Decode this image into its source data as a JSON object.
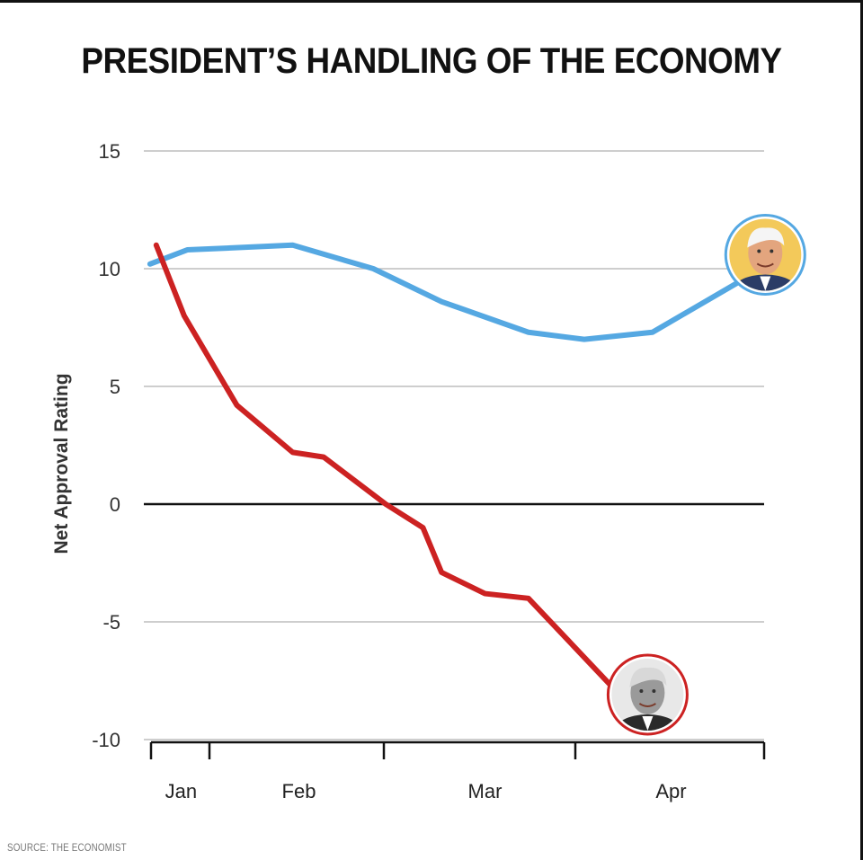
{
  "chart_data": {
    "type": "line",
    "title": "PRESIDENT’S HANDLING OF THE ECONOMY",
    "ylabel": "Net Approval Rating",
    "xlabel": "",
    "ylim": [
      -10,
      15
    ],
    "yticks": [
      "15",
      "10",
      "5",
      "0",
      "-5",
      "-10"
    ],
    "ytick_values": [
      15,
      10,
      5,
      0,
      -5,
      -10
    ],
    "xticks": [
      "Jan",
      "Feb",
      "Mar",
      "Apr"
    ],
    "xtick_values": [
      0.6,
      2.5,
      5.5,
      8.5
    ],
    "xlim": [
      0,
      10
    ],
    "grid": true,
    "source": "SOURCE: THE ECONOMIST",
    "series": [
      {
        "color": "#55a8e2",
        "marker_icon": "face-portrait-icon",
        "x": [
          0.1,
          0.7,
          2.4,
          3.7,
          4.8,
          6.2,
          7.1,
          8.2,
          9.7
        ],
        "values": [
          10.2,
          10.8,
          11.0,
          10.0,
          8.6,
          7.3,
          7.0,
          7.3,
          9.6
        ]
      },
      {
        "color": "#cc2222",
        "marker_icon": "face-portrait-icon",
        "x": [
          0.2,
          0.65,
          1.5,
          2.4,
          2.9,
          3.9,
          4.5,
          4.8,
          5.5,
          6.2,
          7.6
        ],
        "values": [
          11.0,
          8.0,
          4.2,
          2.2,
          2.0,
          0.0,
          -1.0,
          -2.9,
          -3.8,
          -4.0,
          -7.9
        ]
      }
    ]
  }
}
